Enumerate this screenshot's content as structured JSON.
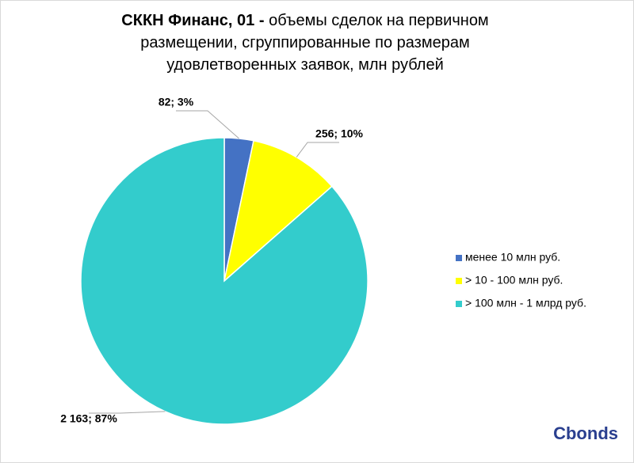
{
  "chart_data": {
    "type": "pie",
    "title": [
      "СККН Финанс, 01 -",
      "объемы сделок на первичном",
      "размещении, сгруппированные по размерам",
      "удовлетворенных заявок, млн рублей"
    ],
    "categories": [
      "менее 10 млн руб.",
      "> 10 - 100 млн руб.",
      "> 100 млн - 1 млрд руб."
    ],
    "values": [
      82,
      256,
      2163
    ],
    "value_labels": [
      "82; 3%",
      "256; 10%",
      "2 163; 87%"
    ],
    "colors": [
      "#4472c4",
      "#ffff00",
      "#33cccc"
    ],
    "legend": "right",
    "watermark": "Cbonds"
  }
}
